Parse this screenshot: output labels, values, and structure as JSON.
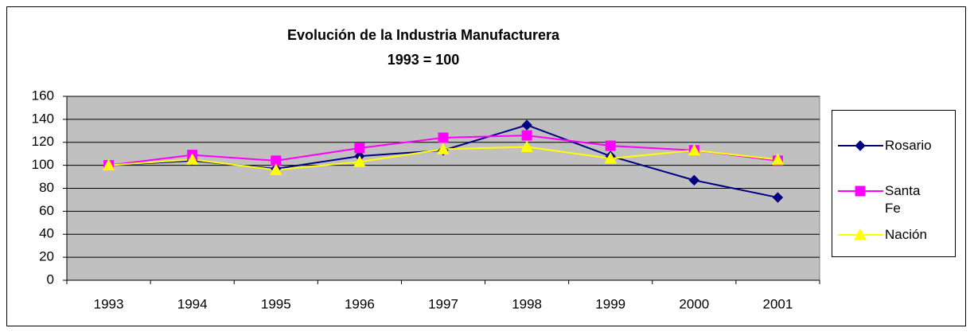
{
  "chart_data": {
    "type": "line",
    "title": "Evolución de la Industria Manufacturera",
    "subtitle": "1993 = 100",
    "categories": [
      "1993",
      "1994",
      "1995",
      "1996",
      "1997",
      "1998",
      "1999",
      "2000",
      "2001"
    ],
    "series": [
      {
        "name": "Rosario",
        "color": "#000080",
        "marker": "diamond",
        "values": [
          100,
          104,
          97,
          108,
          113,
          135,
          108,
          87,
          72
        ]
      },
      {
        "name": "Santa Fe",
        "color": "#FF00FF",
        "marker": "square",
        "values": [
          100,
          109,
          104,
          115,
          124,
          126,
          117,
          113,
          104
        ]
      },
      {
        "name": "Nación",
        "color": "#FFFF00",
        "marker": "triangle",
        "values": [
          100,
          105,
          96,
          103,
          114,
          116,
          106,
          113,
          105
        ]
      }
    ],
    "ylim": [
      0,
      160
    ],
    "yticks": [
      0,
      20,
      40,
      60,
      80,
      100,
      120,
      140,
      160
    ],
    "grid": true,
    "legend": "right",
    "plot_background": "#C0C0C0"
  }
}
